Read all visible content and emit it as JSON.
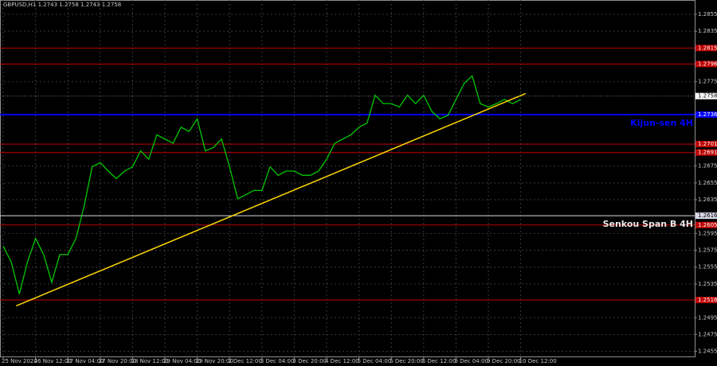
{
  "chart_data": {
    "type": "line",
    "title": "GBPUSD,H1  1.2743 1.2758 1.2743 1.2758",
    "categories": [
      "25 Nov 2024",
      null,
      null,
      null,
      "26 Nov 12:00",
      null,
      null,
      null,
      "27 Nov 04:00",
      null,
      null,
      null,
      "27 Nov 20:00",
      null,
      null,
      null,
      "28 Nov 12:00",
      null,
      null,
      null,
      "29 Nov 04:00",
      null,
      null,
      null,
      "29 Nov 20:00",
      null,
      null,
      null,
      "2 Dec 12:00",
      null,
      null,
      null,
      "3 Dec 04:00",
      null,
      null,
      null,
      "3 Dec 20:00",
      null,
      null,
      null,
      "4 Dec 12:00",
      null,
      null,
      null,
      "5 Dec 04:00",
      null,
      null,
      null,
      "5 Dec 20:00",
      null,
      null,
      null,
      "6 Dec 12:00",
      null,
      null,
      null,
      "9 Dec 04:00",
      null,
      null,
      null,
      "9 Dec 20:00",
      null,
      null,
      null,
      "10 Dec 12:00"
    ],
    "series": [
      {
        "color": "#00c800",
        "values": [
          1.258,
          1.2561,
          1.2523,
          1.2561,
          1.2589,
          1.257,
          1.2537,
          1.257,
          1.257,
          1.2589,
          1.2627,
          1.2674,
          1.2679,
          1.2669,
          1.266,
          1.2669,
          1.2674,
          1.2693,
          1.2683,
          1.2712,
          1.2707,
          1.2702,
          1.2721,
          1.2716,
          1.2731,
          1.2693,
          1.2697,
          1.2707,
          1.2674,
          1.2636,
          1.2641,
          1.2646,
          1.2646,
          1.2674,
          1.2664,
          1.2669,
          1.2669,
          1.2664,
          1.2664,
          1.2669,
          1.2683,
          1.2702,
          1.2707,
          1.2712,
          1.2721,
          1.2726,
          1.2759,
          1.2749,
          1.2749,
          1.2745,
          1.2759,
          1.2749,
          1.2759,
          1.274,
          1.2731,
          1.2735,
          1.2754,
          1.2773,
          1.2782,
          1.2749,
          1.2745,
          1.2749,
          1.2754,
          1.2749,
          1.2754
        ]
      }
    ],
    "trendline": {
      "x": [
        1.6,
        64.6
      ],
      "values": [
        1.2509,
        1.2761
      ],
      "color": "#ffd700"
    },
    "ylim": [
      1.2449,
      1.2872
    ],
    "yticks": [
      1.2855,
      1.2835,
      1.2775,
      1.2675,
      1.2655,
      1.2635,
      1.2595,
      1.2575,
      1.2555,
      1.2535,
      1.2495,
      1.2475,
      1.2455
    ],
    "grid": true,
    "levels": [
      {
        "value": 1.2815,
        "label": "1.2815",
        "color": "#c00000"
      },
      {
        "value": 1.2796,
        "label": "1.2796",
        "color": "#c00000"
      },
      {
        "value": 1.2736,
        "label": "1.2736",
        "color": "#0000ff"
      },
      {
        "value": 1.2701,
        "label": "1.2701",
        "color": "#c00000"
      },
      {
        "value": 1.2691,
        "label": "1.2691",
        "color": "#c00000"
      },
      {
        "value": 1.2616,
        "label": "1.2616",
        "color": "#d8d8e8"
      },
      {
        "value": 1.2605,
        "label": "1.2605",
        "color": "#c00000"
      },
      {
        "value": 1.2516,
        "label": "1.2516",
        "color": "#c00000"
      }
    ],
    "price": {
      "value": 1.2758,
      "label": "1.2758"
    },
    "annotations": [
      {
        "text": "Kijun-sen 4H",
        "value": 1.2736,
        "color": "#0000ff"
      },
      {
        "text": "Senkou Span B 4H",
        "value": 1.2616,
        "color": "#e8e8e8"
      }
    ]
  }
}
